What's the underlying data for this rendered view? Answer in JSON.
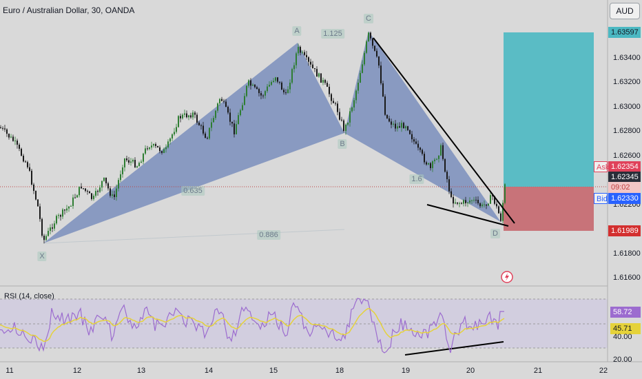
{
  "header": {
    "title": "Euro / Australian Dollar, 30, OANDA",
    "currency": "AUD"
  },
  "price_axis": {
    "labels": [
      "1.63400",
      "1.63200",
      "1.63000",
      "1.62800",
      "1.62600",
      "1.62200",
      "1.61800",
      "1.61600"
    ],
    "tags": {
      "target": "1.63597",
      "ask": "1.62354",
      "last": "1.62345",
      "countdown": "09:02",
      "bid": "1.62330",
      "stop": "1.61989"
    },
    "ask_label": "Ask",
    "bid_label": "Bid"
  },
  "time_axis": {
    "labels": [
      "11",
      "12",
      "13",
      "14",
      "15",
      "18",
      "19",
      "20",
      "21",
      "22"
    ]
  },
  "pattern": {
    "points": {
      "x": "X",
      "a": "A",
      "b": "B",
      "c": "C",
      "d": "D"
    },
    "ratios": {
      "ab": "1.125",
      "xb": "0.635",
      "bc": "1.6",
      "xd": "0.886"
    }
  },
  "rsi": {
    "label": "RSI (14, close)",
    "value": "58.72",
    "ma": "45.71",
    "levels": [
      "40.00",
      "20.00"
    ]
  },
  "colors": {
    "target_zone": "#4bb8c2",
    "stop_zone": "#c5676e",
    "pattern_fill": "#6e84b8",
    "candle_up": "#2e7d32",
    "candle_down": "#1a1a1a",
    "rsi_line": "#9c6ccf",
    "rsi_ma": "#e5d23a"
  },
  "icons": {
    "replay": "lightning-icon"
  }
}
